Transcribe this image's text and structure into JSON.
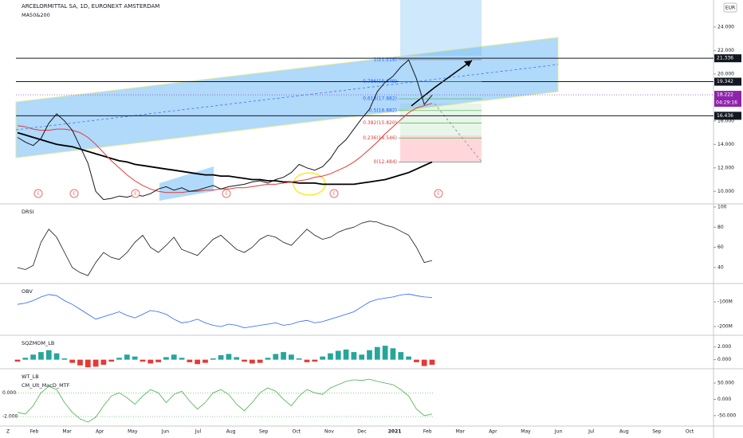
{
  "header": {
    "title": "ARCELORMITTAL SA, 1D, EURONEXT AMSTERDAM",
    "subtitle": "MA50&200",
    "currency": "EUR",
    "corner": "Z"
  },
  "price_axis": {
    "ylim": [
      9,
      26.3
    ],
    "ticks": [
      {
        "value": 24,
        "label": "24.000"
      },
      {
        "value": 22,
        "label": "22.000"
      },
      {
        "value": 20,
        "label": "20.000"
      },
      {
        "value": 16,
        "label": "16.000"
      },
      {
        "value": 14,
        "label": "14.000"
      },
      {
        "value": 12,
        "label": "12.000"
      },
      {
        "value": 10,
        "label": "10.000"
      }
    ],
    "levels": [
      {
        "value": 21.336,
        "label": "21.336"
      },
      {
        "value": 19.342,
        "label": "19.342"
      },
      {
        "value": 16.436,
        "label": "16.436"
      }
    ],
    "last": {
      "value": 18.222,
      "label": "18.222"
    },
    "countdown": "04:29:16"
  },
  "fib": [
    {
      "value": 21.218,
      "label": "1(21.218)"
    },
    {
      "value": 19.349,
      "label": "0.786(19.349)"
    },
    {
      "value": 17.882,
      "label": "0.618(17.882)"
    },
    {
      "value": 16.882,
      "label": "0.5(16.882)"
    },
    {
      "value": 15.82,
      "label": "0.382(15.820)"
    },
    {
      "value": 14.546,
      "label": "0.236(14.546)"
    },
    {
      "value": 12.484,
      "label": "0(12.484)"
    }
  ],
  "price": {
    "close": {
      "color": "#131722",
      "values": [
        14.6,
        14.2,
        13.9,
        14.5,
        15.8,
        16.6,
        16.0,
        15.2,
        13.8,
        12.4,
        10.0,
        9.3,
        9.4,
        9.6,
        9.5,
        9.7,
        9.6,
        9.8,
        10.2,
        10.4,
        10.1,
        10.3,
        10.0,
        10.1,
        10.3,
        10.5,
        10.2,
        10.4,
        10.5,
        10.6,
        10.8,
        10.9,
        10.7,
        11.0,
        11.2,
        11.6,
        12.3,
        12.0,
        11.8,
        12.1,
        12.8,
        13.8,
        14.4,
        15.3,
        16.2,
        17.0,
        18.5,
        19.3,
        19.8,
        20.6,
        21.2,
        19.6,
        17.4,
        18.2
      ]
    },
    "ma50": {
      "color": "#e53935",
      "values": [
        15.6,
        15.5,
        15.3,
        15.2,
        15.2,
        15.3,
        15.3,
        15.2,
        15.0,
        14.6,
        14.0,
        13.3,
        12.6,
        12.0,
        11.4,
        10.9,
        10.5,
        10.2,
        10.0,
        9.9,
        9.9,
        9.9,
        10.0,
        10.0,
        10.1,
        10.1,
        10.2,
        10.2,
        10.3,
        10.3,
        10.4,
        10.5,
        10.6,
        10.6,
        10.7,
        10.8,
        10.9,
        11.0,
        11.2,
        11.3,
        11.5,
        11.8,
        12.1,
        12.5,
        13.0,
        13.6,
        14.2,
        14.9,
        15.5,
        16.1,
        16.7,
        17.1,
        17.3,
        17.5
      ]
    },
    "ma200": {
      "color": "#000000",
      "values": [
        15.0,
        14.8,
        14.6,
        14.4,
        14.2,
        14.0,
        13.9,
        13.8,
        13.6,
        13.4,
        13.2,
        13.0,
        12.8,
        12.6,
        12.5,
        12.3,
        12.2,
        12.1,
        12.0,
        11.9,
        11.8,
        11.7,
        11.6,
        11.5,
        11.4,
        11.4,
        11.3,
        11.3,
        11.2,
        11.1,
        11.0,
        11.0,
        10.9,
        10.9,
        10.8,
        10.8,
        10.7,
        10.7,
        10.7,
        10.6,
        10.6,
        10.6,
        10.6,
        10.6,
        10.7,
        10.8,
        10.9,
        11.0,
        11.2,
        11.4,
        11.6,
        11.9,
        12.2,
        12.5
      ]
    }
  },
  "events": [
    "E",
    "E",
    "E",
    "E",
    "E",
    "E"
  ],
  "panels": [
    {
      "label": "DRSI",
      "color": "#131722",
      "ylim": [
        25,
        101.5
      ],
      "ticks": [
        100,
        80,
        60,
        40
      ],
      "values": [
        40,
        38,
        42,
        65,
        78,
        70,
        55,
        40,
        35,
        32,
        45,
        55,
        50,
        48,
        55,
        65,
        72,
        60,
        55,
        62,
        70,
        58,
        55,
        52,
        60,
        68,
        72,
        65,
        58,
        55,
        60,
        68,
        72,
        70,
        65,
        62,
        70,
        78,
        72,
        68,
        70,
        75,
        78,
        80,
        84,
        86,
        85,
        82,
        80,
        76,
        72,
        60,
        45,
        47
      ]
    },
    {
      "label": "OBV",
      "color": "#2962ff",
      "ylim": [
        -232,
        -32
      ],
      "ticks": [
        {
          "value": -100,
          "label": "-100M"
        },
        {
          "value": -200,
          "label": "-200M"
        }
      ],
      "values": [
        -110,
        -105,
        -95,
        -80,
        -70,
        -75,
        -95,
        -110,
        -130,
        -150,
        -170,
        -160,
        -150,
        -140,
        -155,
        -165,
        -150,
        -135,
        -140,
        -150,
        -170,
        -185,
        -180,
        -170,
        -185,
        -195,
        -200,
        -190,
        -195,
        -205,
        -200,
        -195,
        -190,
        -185,
        -195,
        -190,
        -180,
        -175,
        -185,
        -180,
        -170,
        -160,
        -150,
        -140,
        -120,
        -100,
        -90,
        -85,
        -80,
        -72,
        -68,
        -75,
        -80,
        -82
      ]
    },
    {
      "label": "SQZMOM_LB",
      "type": "bar",
      "color": "#26a69a",
      "color_negative": "#e53935",
      "ylim": [
        -1.3,
        3.6
      ],
      "ticks": [
        {
          "value": 2,
          "label": "2.000"
        },
        {
          "value": 0,
          "label": "0.000"
        }
      ],
      "values": [
        -0.3,
        0.3,
        0.8,
        1.2,
        1.5,
        1.0,
        0.2,
        -0.5,
        -0.9,
        -1.2,
        -1.1,
        -0.8,
        -0.3,
        0.3,
        0.8,
        0.5,
        -0.3,
        -0.6,
        -0.4,
        0.4,
        0.8,
        0.3,
        -0.4,
        -0.7,
        -0.5,
        0.2,
        0.7,
        0.9,
        0.4,
        -0.3,
        -0.6,
        -0.5,
        0.3,
        0.9,
        1.2,
        0.8,
        0.2,
        -0.4,
        -0.3,
        0.5,
        1.0,
        1.4,
        1.6,
        1.2,
        0.8,
        1.5,
        2.0,
        2.2,
        1.8,
        1.2,
        0.5,
        -0.4,
        -1.0,
        -0.8
      ]
    },
    {
      "label": "WT_LB",
      "label2": "CM_Ult_MacD_MTF",
      "color": "#4caf50",
      "ylim": [
        -82,
        89
      ],
      "ticks": [
        {
          "value": 50,
          "label": "50.000"
        },
        {
          "value": 0,
          "label": "0.000"
        },
        {
          "value": -50,
          "label": "-50.000"
        }
      ],
      "left_ylim": [
        -2.8,
        1.9
      ],
      "left_ticks": [
        {
          "value": 0,
          "label": "0.000"
        },
        {
          "value": -2,
          "label": "-2.000"
        }
      ],
      "values": [
        -40,
        -45,
        -20,
        20,
        40,
        30,
        -10,
        -40,
        -60,
        -70,
        -55,
        -20,
        10,
        20,
        5,
        -15,
        10,
        30,
        20,
        -10,
        15,
        25,
        -5,
        -30,
        -10,
        20,
        30,
        15,
        -15,
        -35,
        -10,
        20,
        35,
        25,
        0,
        -20,
        10,
        30,
        20,
        15,
        35,
        45,
        55,
        60,
        58,
        62,
        55,
        50,
        45,
        30,
        10,
        -30,
        -50,
        -45
      ]
    }
  ],
  "time_axis": [
    "Feb",
    "Mar",
    "Apr",
    "May",
    "Jun",
    "Jul",
    "Aug",
    "Sep",
    "Oct",
    "Nov",
    "Dec",
    "2021",
    "Feb",
    "Mar",
    "Apr",
    "May",
    "Jun",
    "Jul",
    "Aug",
    "Sep",
    "Oct"
  ]
}
